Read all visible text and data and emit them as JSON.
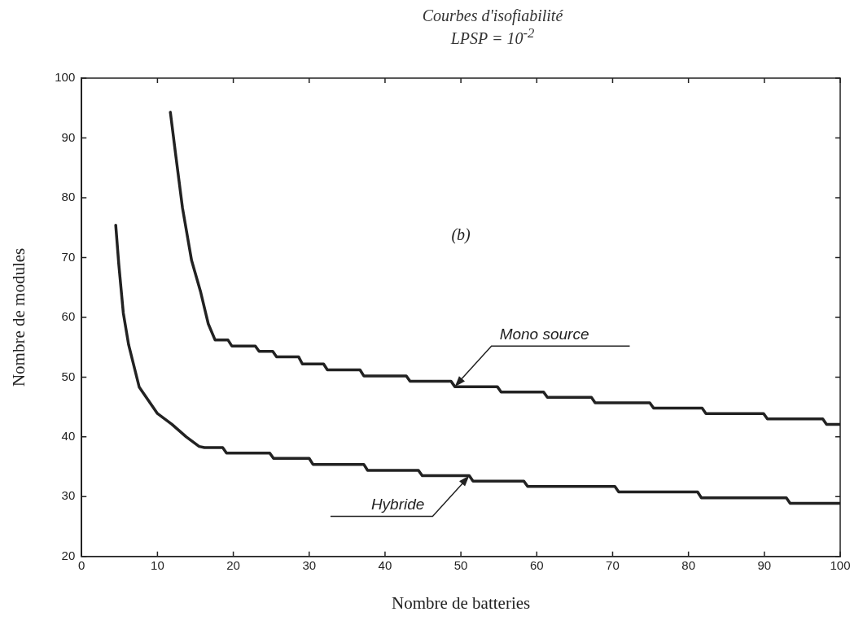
{
  "chart_data": {
    "type": "line",
    "title": "Courbes d'isofiabilité",
    "subtitle": "LPSP = 10$^{-2}$",
    "xlabel": "Nombre de batteries",
    "ylabel": "Nombre de modules",
    "xlim": [
      0,
      100
    ],
    "ylim": [
      20,
      100
    ],
    "xticks": [
      0,
      10,
      20,
      30,
      40,
      50,
      60,
      70,
      80,
      90,
      100
    ],
    "yticks": [
      20,
      30,
      40,
      50,
      60,
      70,
      80,
      90,
      100
    ],
    "grid": false,
    "legend": false,
    "marker": "none",
    "line_style": "solid",
    "series": [
      {
        "name": "Mono source",
        "color": "#222222",
        "x": [
          11.7,
          12.4,
          13.3,
          14.5,
          15.7,
          16.7,
          17.6,
          19.3,
          19.8,
          22.9,
          23.4,
          25.2,
          25.7,
          28.6,
          29.1,
          31.9,
          32.4,
          36.7,
          37.2,
          42.8,
          43.3,
          48.7,
          49.2,
          54.8,
          55.3,
          60.9,
          61.4,
          67.2,
          67.7,
          74.9,
          75.4,
          81.8,
          82.3,
          89.9,
          90.4,
          97.7,
          98.2,
          100
        ],
        "values": [
          94.3,
          87.2,
          78.3,
          69.5,
          64.2,
          58.9,
          56.2,
          56.2,
          55.2,
          55.2,
          54.3,
          54.3,
          53.4,
          53.4,
          52.2,
          52.2,
          51.2,
          51.2,
          50.2,
          50.2,
          49.3,
          49.3,
          48.4,
          48.4,
          47.5,
          47.5,
          46.6,
          46.6,
          45.7,
          45.7,
          44.8,
          44.8,
          43.9,
          43.9,
          43,
          43,
          42.1,
          42.1
        ]
      },
      {
        "name": "Hybride",
        "color": "#222222",
        "x": [
          4.5,
          4.9,
          5.5,
          6.2,
          7.6,
          10,
          11.9,
          13.8,
          15.5,
          16.2,
          18.6,
          19.1,
          24.8,
          25.3,
          30,
          30.5,
          37.2,
          37.7,
          44.4,
          44.9,
          51.1,
          51.6,
          58.3,
          58.8,
          70.3,
          70.8,
          81.2,
          81.7,
          92.9,
          93.4,
          100
        ],
        "values": [
          75.4,
          68.9,
          60.7,
          55.4,
          48.3,
          43.9,
          42.1,
          40,
          38.4,
          38.2,
          38.2,
          37.3,
          37.3,
          36.4,
          36.4,
          35.4,
          35.4,
          34.4,
          34.4,
          33.5,
          33.5,
          32.6,
          32.6,
          31.7,
          31.7,
          30.8,
          30.8,
          29.8,
          29.8,
          28.9,
          28.9
        ]
      }
    ],
    "annotations": [
      "(b)"
    ]
  }
}
